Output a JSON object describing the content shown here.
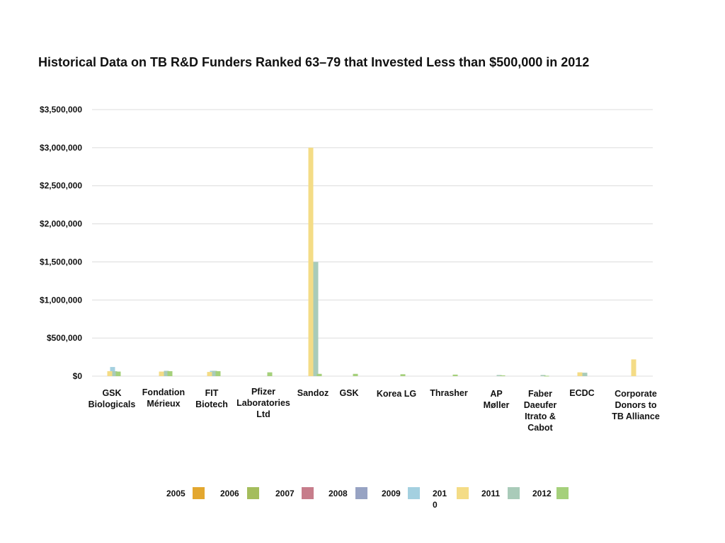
{
  "chart_data": {
    "type": "bar",
    "title": "Historical Data on TB R&D Funders Ranked 63–79 that Invested Less than $500,000 in 2012",
    "xlabel": "",
    "ylabel": "",
    "ylim": [
      0,
      3500000
    ],
    "yticks": [
      0,
      500000,
      1000000,
      1500000,
      2000000,
      2500000,
      3000000,
      3500000
    ],
    "ytick_labels": [
      "$0",
      "$500,000",
      "$1,000,000",
      "$1,500,000",
      "$2,000,000",
      "$2,500,000",
      "$3,000,000",
      "$3,500,000"
    ],
    "grid": true,
    "legend_position": "bottom",
    "categories": [
      "GSK Biologicals",
      "Fondation Mérieux",
      "FIT Biotech",
      "Pfizer Laboratories Ltd",
      "Sandoz",
      "GSK",
      "Korea LG",
      "Thrasher",
      "AP Møller",
      "Faber Daeufer Itrato & Cabot",
      "ECDC",
      "Corporate Donors to TB Alliance"
    ],
    "category_lines": [
      [
        "GSK",
        "Biologicals"
      ],
      [
        "Fondation",
        "Mérieux"
      ],
      [
        "FIT",
        "Biotech"
      ],
      [
        "Pfizer",
        "Laboratories",
        "Ltd"
      ],
      [
        "Sandoz"
      ],
      [
        "GSK"
      ],
      [
        "Korea LG"
      ],
      [
        "Thrasher"
      ],
      [
        "AP",
        "Møller"
      ],
      [
        "Faber",
        "Daeufer",
        "Itrato &",
        "Cabot"
      ],
      [
        "ECDC"
      ],
      [
        "Corporate",
        "Donors to",
        "TB Alliance"
      ]
    ],
    "series": [
      {
        "name": "2005",
        "color": "#e3a72f",
        "values": [
          0,
          0,
          0,
          0,
          0,
          0,
          0,
          0,
          0,
          0,
          0,
          0
        ]
      },
      {
        "name": "2006",
        "color": "#a4bd5c",
        "values": [
          0,
          0,
          0,
          0,
          0,
          0,
          0,
          0,
          0,
          0,
          0,
          0
        ]
      },
      {
        "name": "2007",
        "color": "#c77d8b",
        "values": [
          0,
          0,
          0,
          0,
          0,
          0,
          0,
          0,
          0,
          0,
          0,
          0
        ]
      },
      {
        "name": "2008",
        "color": "#97a3c3",
        "values": [
          0,
          0,
          0,
          0,
          0,
          0,
          0,
          0,
          0,
          0,
          0,
          0
        ]
      },
      {
        "name": "2009",
        "color": "#a4d0e0",
        "values": [
          120000,
          0,
          70000,
          0,
          0,
          0,
          0,
          0,
          0,
          0,
          0,
          0
        ]
      },
      {
        "name": "2010",
        "color": "#f4dc86",
        "values": [
          65000,
          60000,
          55000,
          0,
          3000000,
          0,
          0,
          0,
          0,
          0,
          50000,
          220000
        ]
      },
      {
        "name": "2011",
        "color": "#a9cbb9",
        "values": [
          65000,
          70000,
          70000,
          0,
          1500000,
          0,
          0,
          0,
          15000,
          15000,
          45000,
          0
        ]
      },
      {
        "name": "2012",
        "color": "#a5d07b",
        "values": [
          60000,
          65000,
          65000,
          50000,
          30000,
          30000,
          25000,
          20000,
          10000,
          5000,
          0,
          0
        ]
      }
    ]
  },
  "legend_labels": [
    {
      "text": "2005",
      "lines": [
        "2005"
      ]
    },
    {
      "text": "2006",
      "lines": [
        "2006"
      ]
    },
    {
      "text": "2007",
      "lines": [
        "2007"
      ]
    },
    {
      "text": "2008",
      "lines": [
        "2008"
      ]
    },
    {
      "text": "2009",
      "lines": [
        "2009"
      ]
    },
    {
      "text": "2010",
      "lines": [
        "201",
        "0"
      ]
    },
    {
      "text": "2011",
      "lines": [
        "2011"
      ]
    },
    {
      "text": "2012",
      "lines": [
        "2012"
      ]
    }
  ]
}
